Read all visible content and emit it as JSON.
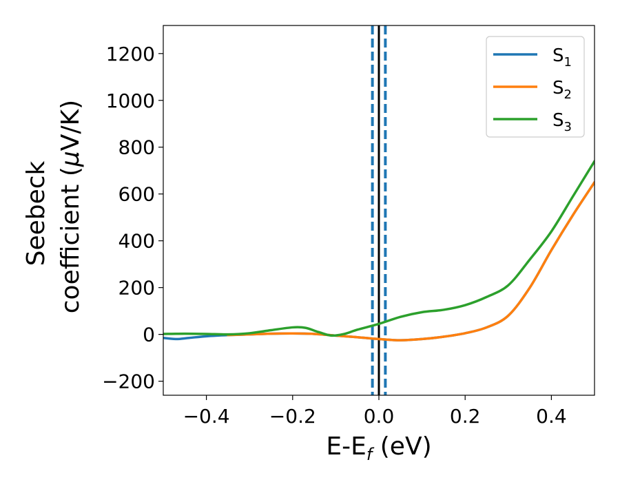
{
  "chart_data": {
    "type": "line",
    "xlabel": {
      "main": "E-E",
      "sub": "f",
      "unit": " (eV)"
    },
    "ylabel": {
      "line1": "Seebeck",
      "line2": "coefficient  (",
      "mu": "μ",
      "line2_end": "V/K)"
    },
    "xlim": [
      -0.5,
      0.5
    ],
    "ylim": [
      -260,
      1320
    ],
    "xticks": [
      -0.4,
      -0.2,
      0.0,
      0.2,
      0.4
    ],
    "xtick_labels": [
      "−0.4",
      "−0.2",
      "0.0",
      "0.2",
      "0.4"
    ],
    "yticks": [
      -200,
      0,
      200,
      400,
      600,
      800,
      1000,
      1200
    ],
    "ytick_labels": [
      "−200",
      "0",
      "200",
      "400",
      "600",
      "800",
      "1000",
      "1200"
    ],
    "grid": false,
    "legend_position": "top-right",
    "vlines": [
      {
        "x": 0.0,
        "style": "solid",
        "color": "#000000"
      },
      {
        "x": -0.015,
        "style": "dashed",
        "color": "#1f77b4"
      },
      {
        "x": 0.015,
        "style": "dashed",
        "color": "#1f77b4"
      }
    ],
    "series": [
      {
        "name": "S",
        "sub": "1",
        "color": "#1f77b4",
        "x": [
          -0.5,
          -0.47,
          -0.44,
          -0.4,
          -0.35,
          -0.3,
          -0.25,
          -0.2,
          -0.15,
          -0.1,
          -0.05,
          0.0,
          0.05,
          0.1,
          0.15,
          0.2,
          0.25,
          0.3,
          0.35,
          0.4,
          0.45,
          0.5
        ],
        "y": [
          -15,
          -20,
          -15,
          -8,
          -3,
          0,
          3,
          4,
          2,
          -5,
          -12,
          -20,
          -25,
          -20,
          -10,
          5,
          30,
          80,
          200,
          360,
          510,
          650
        ]
      },
      {
        "name": "S",
        "sub": "2",
        "color": "#ff7f0e",
        "x": [
          -0.35,
          -0.3,
          -0.25,
          -0.2,
          -0.15,
          -0.1,
          -0.05,
          0.0,
          0.05,
          0.1,
          0.15,
          0.2,
          0.25,
          0.3,
          0.35,
          0.4,
          0.45,
          0.5
        ],
        "y": [
          -3,
          0,
          3,
          4,
          2,
          -5,
          -12,
          -20,
          -25,
          -20,
          -10,
          5,
          30,
          80,
          200,
          360,
          510,
          650
        ]
      },
      {
        "name": "S",
        "sub": "3",
        "color": "#2ca02c",
        "x": [
          -0.5,
          -0.45,
          -0.4,
          -0.35,
          -0.3,
          -0.25,
          -0.2,
          -0.17,
          -0.14,
          -0.11,
          -0.08,
          -0.05,
          0.0,
          0.05,
          0.1,
          0.15,
          0.2,
          0.25,
          0.3,
          0.35,
          0.4,
          0.45,
          0.5
        ],
        "y": [
          2,
          3,
          2,
          0,
          5,
          18,
          30,
          28,
          10,
          -5,
          2,
          20,
          45,
          75,
          95,
          105,
          125,
          160,
          210,
          320,
          440,
          590,
          740
        ]
      }
    ]
  }
}
